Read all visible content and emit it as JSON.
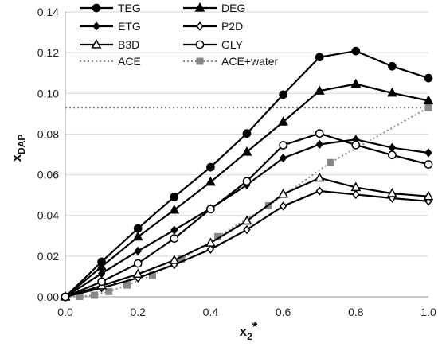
{
  "chart_data": {
    "type": "line",
    "title": "",
    "xlabel": "x",
    "xlabel_sub": "2",
    "xlabel_sup": "*",
    "ylabel": "x",
    "ylabel_sub": "DAP",
    "xlim": [
      0.0,
      1.0
    ],
    "ylim": [
      0.0,
      0.14
    ],
    "x_ticks": [
      0.0,
      0.2,
      0.4,
      0.6,
      0.8,
      1.0
    ],
    "x_tick_labels": [
      "0.0",
      "0.2",
      "0.4",
      "0.6",
      "0.8",
      "1.0"
    ],
    "y_ticks": [
      0.0,
      0.02,
      0.04,
      0.06,
      0.08,
      0.1,
      0.12,
      0.14
    ],
    "y_tick_labels": [
      "0.00",
      "0.02",
      "0.04",
      "0.06",
      "0.08",
      "0.10",
      "0.12",
      "0.14"
    ],
    "grid": "horizontal",
    "legend_position": "top-left",
    "series": [
      {
        "name": "TEG",
        "marker": "circle-filled",
        "line": "solid",
        "color": "#000000",
        "points": [
          [
            0.0,
            0.0
          ],
          [
            0.1,
            0.0172
          ],
          [
            0.2,
            0.0336
          ],
          [
            0.3,
            0.0491
          ],
          [
            0.4,
            0.0637
          ],
          [
            0.5,
            0.0803
          ],
          [
            0.6,
            0.0994
          ],
          [
            0.7,
            0.1178
          ],
          [
            0.8,
            0.1208
          ],
          [
            0.9,
            0.1133
          ],
          [
            1.0,
            0.1075
          ]
        ]
      },
      {
        "name": "DEG",
        "marker": "triangle-filled",
        "line": "solid",
        "color": "#000000",
        "points": [
          [
            0.0,
            0.0
          ],
          [
            0.1,
            0.0148
          ],
          [
            0.2,
            0.0295
          ],
          [
            0.3,
            0.0427
          ],
          [
            0.4,
            0.0564
          ],
          [
            0.5,
            0.0712
          ],
          [
            0.6,
            0.086
          ],
          [
            0.7,
            0.1012
          ],
          [
            0.8,
            0.1046
          ],
          [
            0.9,
            0.1002
          ],
          [
            1.0,
            0.0964
          ]
        ]
      },
      {
        "name": "ETG",
        "marker": "diamond-filled",
        "line": "solid",
        "color": "#000000",
        "points": [
          [
            0.0,
            0.0
          ],
          [
            0.1,
            0.0115
          ],
          [
            0.2,
            0.0225
          ],
          [
            0.3,
            0.0328
          ],
          [
            0.4,
            0.0434
          ],
          [
            0.5,
            0.055
          ],
          [
            0.6,
            0.0682
          ],
          [
            0.7,
            0.0749
          ],
          [
            0.8,
            0.0773
          ],
          [
            0.9,
            0.0733
          ],
          [
            1.0,
            0.0708
          ]
        ]
      },
      {
        "name": "P2D",
        "marker": "diamond-open",
        "line": "solid",
        "color": "#000000",
        "points": [
          [
            0.0,
            0.0
          ],
          [
            0.1,
            0.0044
          ],
          [
            0.2,
            0.0093
          ],
          [
            0.3,
            0.0158
          ],
          [
            0.4,
            0.0234
          ],
          [
            0.5,
            0.033
          ],
          [
            0.6,
            0.0446
          ],
          [
            0.7,
            0.052
          ],
          [
            0.8,
            0.0503
          ],
          [
            0.9,
            0.0485
          ],
          [
            1.0,
            0.047
          ]
        ]
      },
      {
        "name": "B3D",
        "marker": "triangle-open",
        "line": "solid",
        "color": "#000000",
        "points": [
          [
            0.0,
            0.0
          ],
          [
            0.1,
            0.0055
          ],
          [
            0.2,
            0.0112
          ],
          [
            0.3,
            0.018
          ],
          [
            0.4,
            0.0265
          ],
          [
            0.5,
            0.0373
          ],
          [
            0.6,
            0.0505
          ],
          [
            0.7,
            0.0584
          ],
          [
            0.8,
            0.0538
          ],
          [
            0.9,
            0.0508
          ],
          [
            1.0,
            0.0494
          ]
        ]
      },
      {
        "name": "GLY",
        "marker": "circle-open",
        "line": "solid",
        "color": "#000000",
        "points": [
          [
            0.0,
            0.0
          ],
          [
            0.1,
            0.0075
          ],
          [
            0.2,
            0.0164
          ],
          [
            0.3,
            0.0287
          ],
          [
            0.4,
            0.0431
          ],
          [
            0.5,
            0.0568
          ],
          [
            0.6,
            0.0745
          ],
          [
            0.7,
            0.0803
          ],
          [
            0.8,
            0.0746
          ],
          [
            0.9,
            0.0697
          ],
          [
            1.0,
            0.0651
          ]
        ]
      },
      {
        "name": "ACE",
        "marker": "none",
        "line": "dotted",
        "color": "#888888",
        "points": [
          [
            0.0,
            0.093
          ],
          [
            1.0,
            0.093
          ]
        ]
      },
      {
        "name": "ACE+water",
        "marker": "square-filled",
        "line": "dotted",
        "color": "#888888",
        "points": [
          [
            0.0,
            0.0
          ],
          [
            0.04,
            0.0002
          ],
          [
            0.08,
            0.0008
          ],
          [
            0.12,
            0.0026
          ],
          [
            0.17,
            0.0058
          ],
          [
            0.24,
            0.0106
          ],
          [
            0.32,
            0.0186
          ],
          [
            0.42,
            0.0296
          ],
          [
            0.56,
            0.0448
          ],
          [
            0.73,
            0.066
          ],
          [
            1.0,
            0.093
          ]
        ]
      }
    ]
  }
}
